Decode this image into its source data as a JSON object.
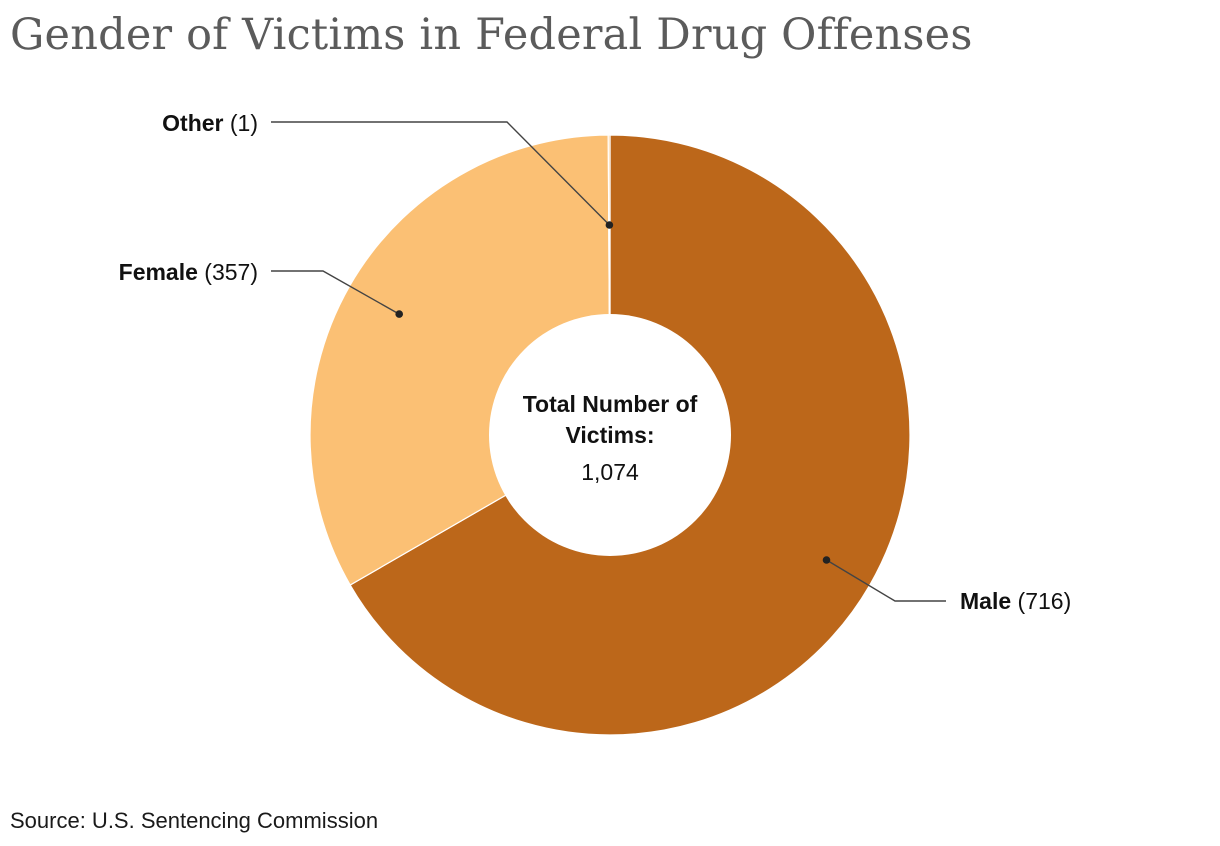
{
  "title": "Gender of Victims in Federal Drug Offenses",
  "source": "Source: U.S. Sentencing Commission",
  "chart_data": {
    "type": "pie",
    "donut": true,
    "title": "Gender of Victims in Federal Drug Offenses",
    "center_label": {
      "line1": "Total Number of",
      "line2": "Victims:",
      "value": "1,074"
    },
    "slices": [
      {
        "name": "Male",
        "value": 716,
        "label": "(716)",
        "color": "#bc671a"
      },
      {
        "name": "Female",
        "value": 357,
        "label": "(357)",
        "color": "#fbc074"
      },
      {
        "name": "Other",
        "value": 1,
        "label": "(1)",
        "color": "#fbc074"
      }
    ]
  }
}
